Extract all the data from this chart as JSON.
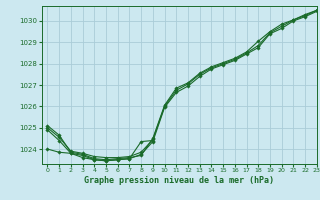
{
  "title": "Graphe pression niveau de la mer (hPa)",
  "bg_color": "#cce8f0",
  "grid_color": "#aaccd8",
  "line_color": "#1a6b2a",
  "marker_color": "#1a6b2a",
  "xlim": [
    -0.5,
    23
  ],
  "ylim": [
    1023.3,
    1030.7
  ],
  "xticks": [
    0,
    1,
    2,
    3,
    4,
    5,
    6,
    7,
    8,
    9,
    10,
    11,
    12,
    13,
    14,
    15,
    16,
    17,
    18,
    19,
    20,
    21,
    22,
    23
  ],
  "yticks": [
    1024,
    1025,
    1026,
    1027,
    1028,
    1029,
    1030
  ],
  "series": [
    [
      1025.1,
      1024.65,
      1023.85,
      1023.75,
      1023.55,
      1023.5,
      1023.55,
      1023.6,
      1023.7,
      1024.5,
      1026.05,
      1026.85,
      1027.1,
      1027.55,
      1027.85,
      1028.05,
      1028.25,
      1028.55,
      1029.05,
      1029.5,
      1029.85,
      1030.05,
      1030.3,
      1030.5
    ],
    [
      1025.0,
      1024.55,
      1023.9,
      1023.8,
      1023.65,
      1023.6,
      1023.6,
      1023.65,
      1023.85,
      1024.45,
      1026.0,
      1026.75,
      1027.05,
      1027.5,
      1027.8,
      1028.0,
      1028.2,
      1028.5,
      1028.85,
      1029.45,
      1029.75,
      1030.05,
      1030.25,
      1030.5
    ],
    [
      1024.9,
      1024.4,
      1023.8,
      1023.7,
      1023.5,
      1023.45,
      1023.5,
      1023.55,
      1023.75,
      1024.35,
      1025.95,
      1026.65,
      1026.95,
      1027.4,
      1027.75,
      1027.95,
      1028.15,
      1028.45,
      1028.75,
      1029.4,
      1029.65,
      1030.0,
      1030.2,
      1030.45
    ],
    [
      1024.0,
      null,
      null,
      null,
      null,
      null,
      null,
      null,
      null,
      1024.35,
      1025.95,
      1026.65,
      1026.95,
      1027.4,
      1027.75,
      1027.95,
      1028.15,
      1028.45,
      1028.75,
      1029.4,
      1029.65,
      1030.0,
      1030.2,
      1030.45
    ]
  ]
}
